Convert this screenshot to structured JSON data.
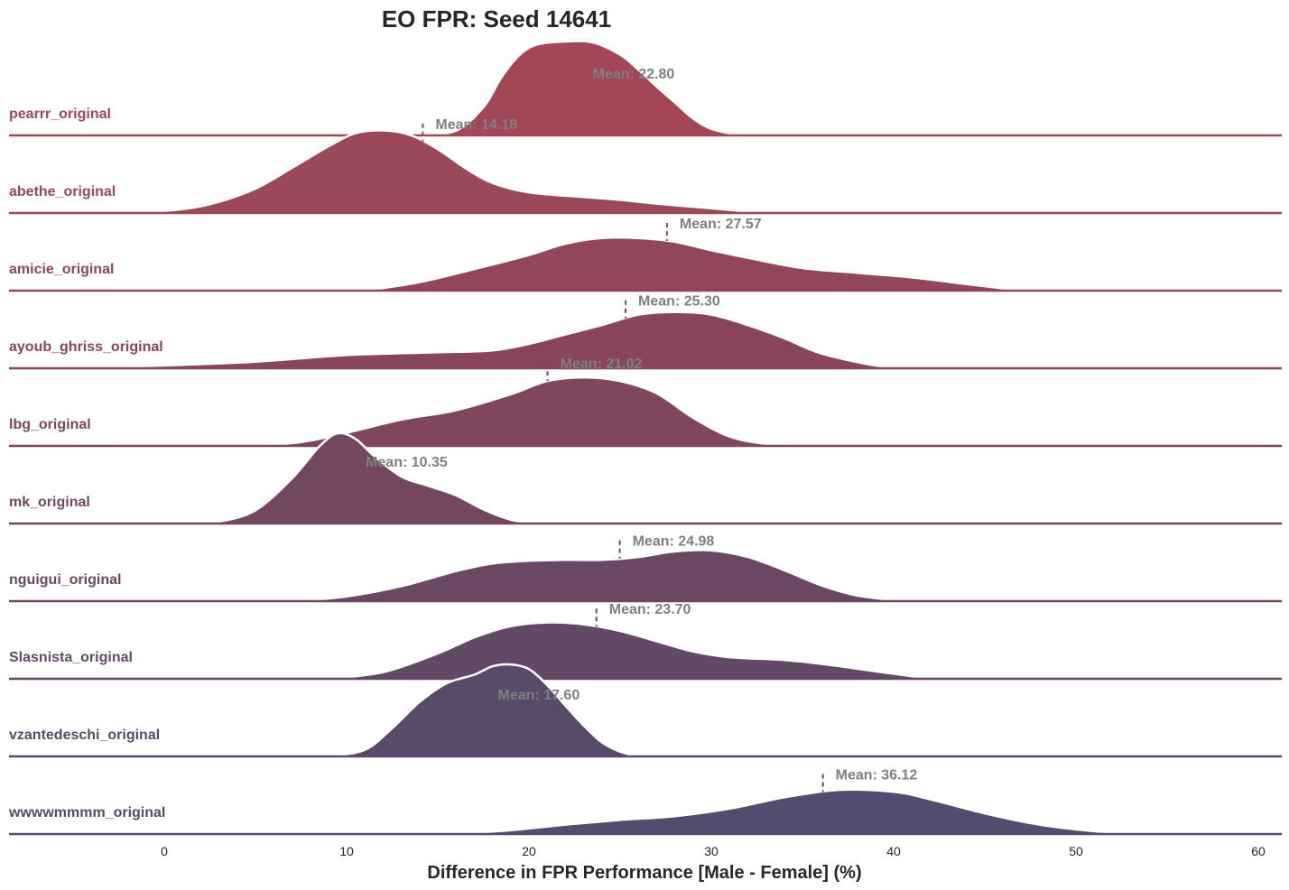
{
  "chart_data": {
    "type": "ridgeline-density",
    "title": "EO FPR: Seed 14641",
    "xlabel": "Difference in FPR Performance [Male - Female] (%)",
    "xlim": [
      -8.5,
      61.5
    ],
    "xticks": [
      0,
      10,
      20,
      30,
      40,
      50,
      60
    ],
    "mean_prefix": "Mean: ",
    "series": [
      {
        "name": "pearrr_original",
        "mean": 22.8,
        "mean_text": "22.80",
        "color": "#a34756",
        "hide_mean_line": true,
        "density": [
          [
            14,
            0
          ],
          [
            16,
            0.05
          ],
          [
            17.5,
            0.3
          ],
          [
            18.5,
            0.62
          ],
          [
            19.5,
            0.86
          ],
          [
            20.5,
            0.97
          ],
          [
            22,
            1.0
          ],
          [
            23.5,
            0.99
          ],
          [
            25,
            0.86
          ],
          [
            26,
            0.7
          ],
          [
            27,
            0.52
          ],
          [
            28,
            0.35
          ],
          [
            29,
            0.18
          ],
          [
            30,
            0.07
          ],
          [
            31.5,
            0
          ]
        ]
      },
      {
        "name": "abethe_original",
        "mean": 14.18,
        "mean_text": "14.18",
        "color": "#9b4858",
        "hide_mean_line": false,
        "density": [
          [
            -2,
            0
          ],
          [
            1,
            0.04
          ],
          [
            3,
            0.12
          ],
          [
            5,
            0.26
          ],
          [
            7,
            0.48
          ],
          [
            9,
            0.71
          ],
          [
            10.5,
            0.85
          ],
          [
            12,
            0.88
          ],
          [
            13.5,
            0.83
          ],
          [
            15,
            0.68
          ],
          [
            16.5,
            0.48
          ],
          [
            18,
            0.32
          ],
          [
            20,
            0.22
          ],
          [
            23,
            0.17
          ],
          [
            25,
            0.14
          ],
          [
            27,
            0.1
          ],
          [
            30,
            0.05
          ],
          [
            33,
            0
          ]
        ]
      },
      {
        "name": "amicie_original",
        "mean": 27.57,
        "mean_text": "27.57",
        "color": "#914759",
        "hide_mean_line": false,
        "density": [
          [
            11,
            0
          ],
          [
            14,
            0.09
          ],
          [
            17,
            0.23
          ],
          [
            20,
            0.38
          ],
          [
            22,
            0.5
          ],
          [
            24,
            0.56
          ],
          [
            26,
            0.56
          ],
          [
            28,
            0.52
          ],
          [
            30,
            0.43
          ],
          [
            32,
            0.35
          ],
          [
            35,
            0.24
          ],
          [
            38,
            0.19
          ],
          [
            41,
            0.14
          ],
          [
            44,
            0.07
          ],
          [
            47,
            0
          ]
        ]
      },
      {
        "name": "ayoub_ghriss_original",
        "mean": 25.3,
        "mean_text": "25.30",
        "color": "#89465b",
        "hide_mean_line": false,
        "density": [
          [
            -5,
            0
          ],
          [
            0,
            0.03
          ],
          [
            5,
            0.07
          ],
          [
            10,
            0.14
          ],
          [
            15,
            0.17
          ],
          [
            18,
            0.19
          ],
          [
            20,
            0.26
          ],
          [
            22,
            0.36
          ],
          [
            24,
            0.46
          ],
          [
            26,
            0.57
          ],
          [
            28,
            0.6
          ],
          [
            30,
            0.57
          ],
          [
            32,
            0.46
          ],
          [
            34,
            0.32
          ],
          [
            36,
            0.16
          ],
          [
            39,
            0.03
          ],
          [
            41,
            0
          ]
        ]
      },
      {
        "name": "lbg_original",
        "mean": 21.02,
        "mean_text": "21.02",
        "color": "#7f465d",
        "hide_mean_line": false,
        "density": [
          [
            5,
            0
          ],
          [
            7.5,
            0.04
          ],
          [
            10,
            0.14
          ],
          [
            13,
            0.28
          ],
          [
            16,
            0.38
          ],
          [
            19,
            0.55
          ],
          [
            21,
            0.69
          ],
          [
            23,
            0.73
          ],
          [
            25,
            0.69
          ],
          [
            27,
            0.56
          ],
          [
            29,
            0.3
          ],
          [
            31,
            0.1
          ],
          [
            33,
            0.02
          ],
          [
            34.5,
            0
          ]
        ]
      },
      {
        "name": "mk_original",
        "mean": 10.35,
        "mean_text": "10.35",
        "color": "#734760",
        "hide_mean_line": true,
        "density": [
          [
            1.5,
            0
          ],
          [
            3,
            0.02
          ],
          [
            5,
            0.14
          ],
          [
            7,
            0.48
          ],
          [
            8.5,
            0.82
          ],
          [
            9.5,
            0.96
          ],
          [
            10.5,
            0.9
          ],
          [
            11.5,
            0.72
          ],
          [
            13,
            0.5
          ],
          [
            14.5,
            0.4
          ],
          [
            16,
            0.3
          ],
          [
            17.5,
            0.15
          ],
          [
            19,
            0.04
          ],
          [
            20.5,
            0
          ]
        ]
      },
      {
        "name": "nguigui_original",
        "mean": 24.98,
        "mean_text": "24.98",
        "color": "#6a4863",
        "hide_mean_line": false,
        "density": [
          [
            7,
            0
          ],
          [
            10,
            0.05
          ],
          [
            13,
            0.16
          ],
          [
            16,
            0.32
          ],
          [
            18,
            0.4
          ],
          [
            20,
            0.43
          ],
          [
            22,
            0.44
          ],
          [
            24,
            0.44
          ],
          [
            26,
            0.47
          ],
          [
            28,
            0.53
          ],
          [
            30,
            0.54
          ],
          [
            32,
            0.47
          ],
          [
            34,
            0.33
          ],
          [
            36,
            0.17
          ],
          [
            38,
            0.06
          ],
          [
            40.5,
            0
          ]
        ]
      },
      {
        "name": "Slasnista_original",
        "mean": 23.7,
        "mean_text": "23.70",
        "color": "#624965",
        "hide_mean_line": false,
        "density": [
          [
            9,
            0
          ],
          [
            12,
            0.07
          ],
          [
            15,
            0.27
          ],
          [
            17,
            0.44
          ],
          [
            19,
            0.56
          ],
          [
            21,
            0.6
          ],
          [
            23,
            0.58
          ],
          [
            25,
            0.51
          ],
          [
            27,
            0.4
          ],
          [
            29,
            0.29
          ],
          [
            31,
            0.23
          ],
          [
            34,
            0.2
          ],
          [
            36,
            0.16
          ],
          [
            39,
            0.08
          ],
          [
            42,
            0
          ]
        ]
      },
      {
        "name": "vzantedeschi_original",
        "mean": 17.6,
        "mean_text": "17.60",
        "color": "#5a4a6a",
        "hide_mean_line": true,
        "density": [
          [
            9,
            0
          ],
          [
            11,
            0.07
          ],
          [
            12.5,
            0.3
          ],
          [
            14,
            0.58
          ],
          [
            15.5,
            0.78
          ],
          [
            17,
            0.87
          ],
          [
            18,
            0.96
          ],
          [
            19,
            0.98
          ],
          [
            20,
            0.93
          ],
          [
            21,
            0.76
          ],
          [
            22,
            0.54
          ],
          [
            23,
            0.33
          ],
          [
            24,
            0.15
          ],
          [
            25,
            0.05
          ],
          [
            26,
            0
          ]
        ]
      },
      {
        "name": "wwwwmmmm_original",
        "mean": 36.12,
        "mean_text": "36.12",
        "color": "#524c6e",
        "hide_mean_line": false,
        "density": [
          [
            16,
            0
          ],
          [
            19,
            0.04
          ],
          [
            22,
            0.1
          ],
          [
            25,
            0.15
          ],
          [
            28,
            0.19
          ],
          [
            31,
            0.27
          ],
          [
            34,
            0.39
          ],
          [
            37,
            0.47
          ],
          [
            40,
            0.45
          ],
          [
            42,
            0.37
          ],
          [
            45,
            0.22
          ],
          [
            48,
            0.1
          ],
          [
            51,
            0.03
          ],
          [
            53.5,
            0
          ]
        ]
      }
    ]
  }
}
